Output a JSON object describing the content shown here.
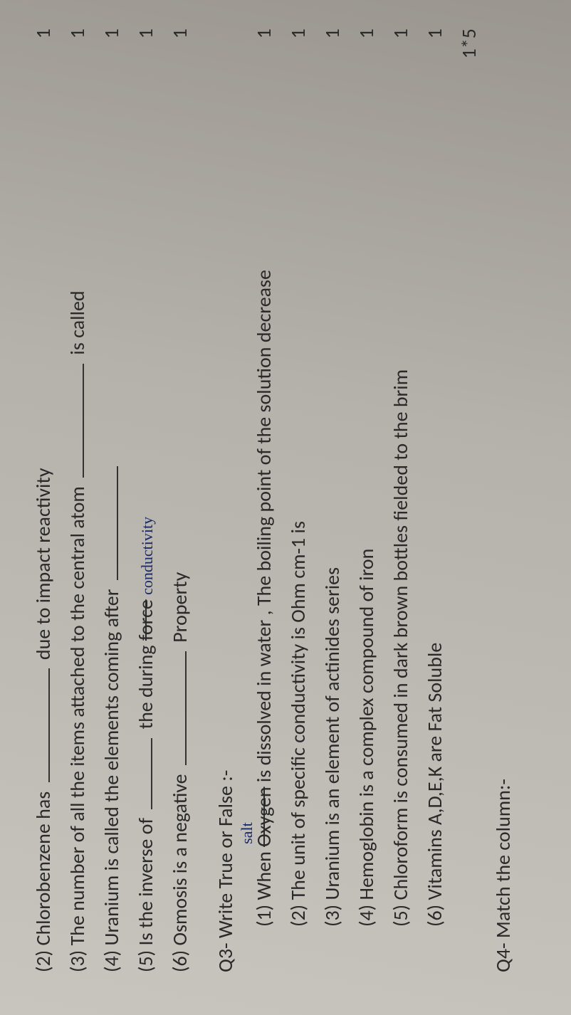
{
  "q2_items": [
    {
      "num": "(2)",
      "pre": "Chlorobenzene has",
      "post": "due to impact reactivity",
      "mark": "1"
    },
    {
      "num": "(3)",
      "pre": "The number of all the items attached to the central atom",
      "post": "is called",
      "mark": "1"
    },
    {
      "num": "(4)",
      "pre": "Uranium is called the elements coming after",
      "post": "",
      "mark": "1"
    },
    {
      "num": "(5)",
      "pre": "Is the inverse of",
      "mid": "the during",
      "strike": "force",
      "hand": "conductivity",
      "mark": "1"
    },
    {
      "num": "(6)",
      "pre": "Osmosis is a negative",
      "post": "Property",
      "mark": "1"
    }
  ],
  "q3_header": "Q3-  Write True or False :-",
  "q3_items": [
    {
      "num": "(1)",
      "text_a": "When",
      "strike": "Oxygen",
      "hand_above": "salt",
      "text_b": "is dissolved in water , The boiling point of the solution decrease",
      "mark": "1"
    },
    {
      "num": "(2)",
      "text": "The unit of specific conductivity is Ohm cm-1 is",
      "mark": "1"
    },
    {
      "num": "(3)",
      "text": "Uranium is an element of actinides series",
      "mark": "1"
    },
    {
      "num": "(4)",
      "text": "Hemoglobin is a complex compound of iron",
      "mark": "1"
    },
    {
      "num": "(5)",
      "text": "Chloroform is consumed in dark brown bottles fielded to the brim",
      "mark": "1"
    },
    {
      "num": "(6)",
      "text": "Vitamins A,D,E,K are Fat Soluble",
      "mark": "1"
    }
  ],
  "total_mark": "1*5",
  "q4_header": "Q4- Match the column:-"
}
